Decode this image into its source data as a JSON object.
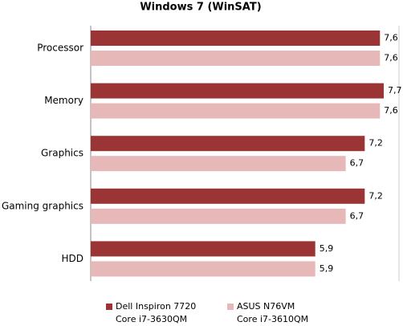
{
  "chart_data": {
    "type": "hbar",
    "title": "Windows 7 (WinSAT)",
    "categories": [
      "Processor",
      "Memory",
      "Graphics",
      "Gaming graphics",
      "HDD"
    ],
    "series": [
      {
        "name": "Dell Inspiron 7720\nCore i7-3630QM",
        "color": "#9b3535",
        "values": [
          7.6,
          7.7,
          7.2,
          7.2,
          5.9
        ],
        "value_labels": [
          "7,6",
          "7,7",
          "7,2",
          "7,2",
          "5,9"
        ]
      },
      {
        "name": "ASUS N76VM\nCore i7-3610QM",
        "color": "#e6b8b8",
        "values": [
          7.6,
          7.6,
          6.7,
          6.7,
          5.9
        ],
        "value_labels": [
          "7,6",
          "7,6",
          "6,7",
          "6,7",
          "5,9"
        ]
      }
    ],
    "xlim": [
      0,
      8.1
    ]
  }
}
